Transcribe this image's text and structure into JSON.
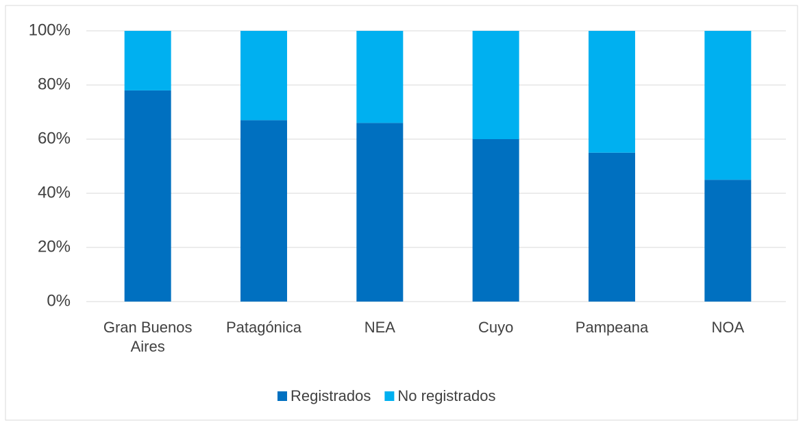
{
  "chart_data": {
    "type": "stacked_bar",
    "categories": [
      "Gran Buenos Aires",
      "Patagónica",
      "NEA",
      "Cuyo",
      "Pampeana",
      "NOA"
    ],
    "series": [
      {
        "name": "Registrados",
        "color": "#0070c0",
        "values": [
          78,
          67,
          66,
          60,
          55,
          45
        ]
      },
      {
        "name": "No registrados",
        "color": "#00b0f0",
        "values": [
          22,
          33,
          34,
          40,
          45,
          55
        ]
      }
    ],
    "ylim": [
      0,
      100
    ],
    "yticks": [
      {
        "value": 0,
        "label": "0%"
      },
      {
        "value": 20,
        "label": "20%"
      },
      {
        "value": 40,
        "label": "40%"
      },
      {
        "value": 60,
        "label": "60%"
      },
      {
        "value": 80,
        "label": "80%"
      },
      {
        "value": 100,
        "label": "100%"
      }
    ],
    "grid": true,
    "legend": "bottom"
  }
}
